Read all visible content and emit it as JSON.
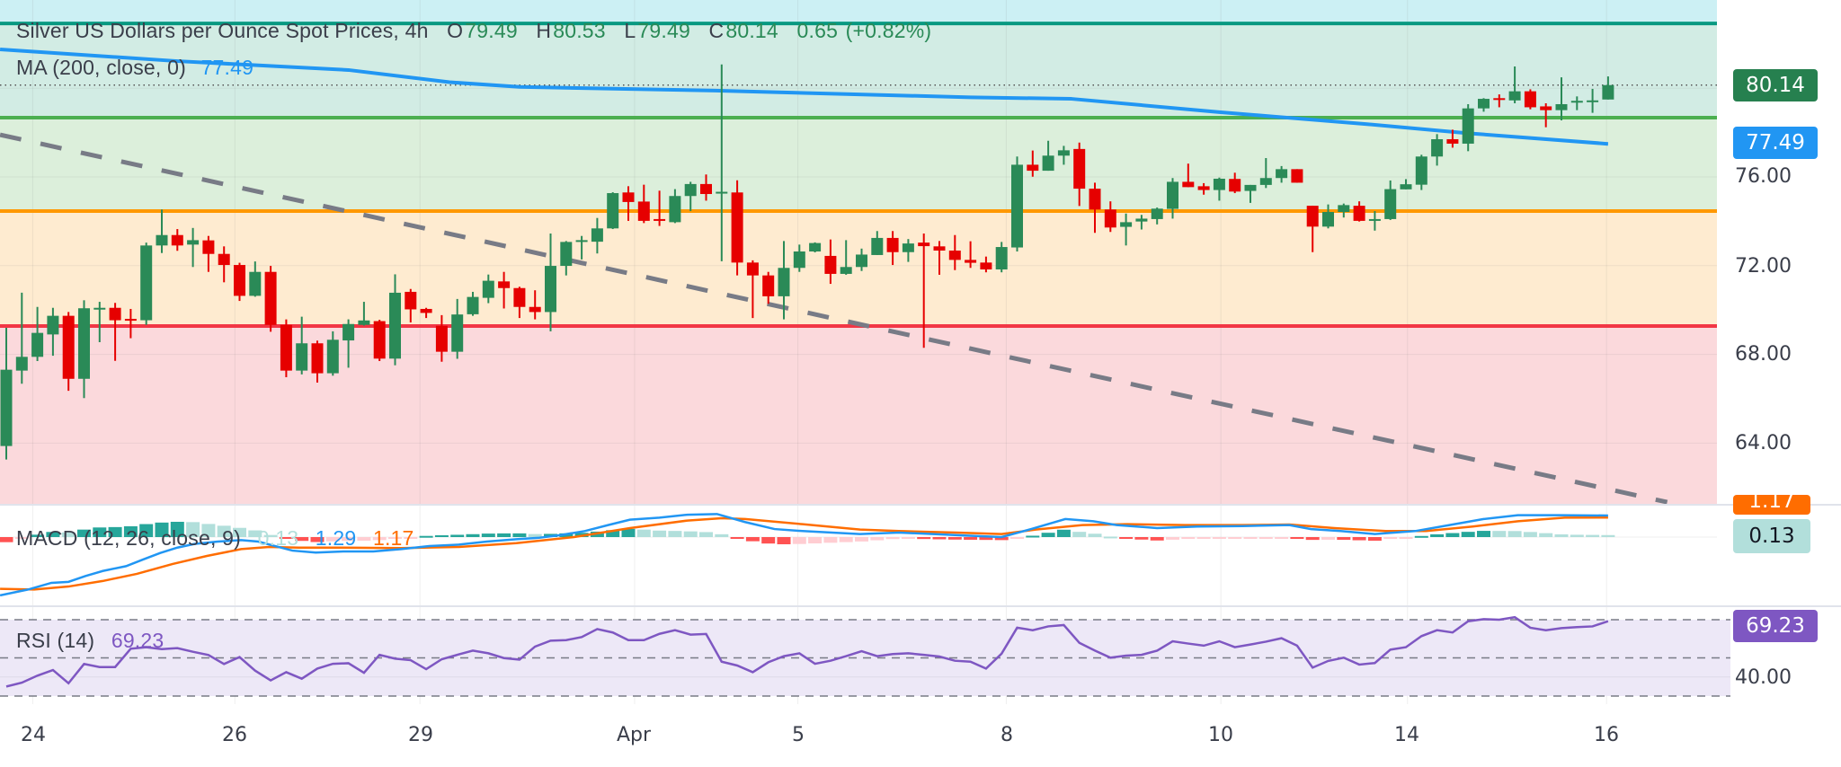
{
  "header": {
    "title": "Silver US Dollars per Ounce Spot Prices, 4h",
    "o_label": "O",
    "o": "79.49",
    "h_label": "H",
    "h": "80.53",
    "l_label": "L",
    "l": "79.49",
    "c_label": "C",
    "c": "80.14",
    "change": "0.65",
    "change_pct": "(+0.82%)"
  },
  "ma_legend": {
    "label": "MA (200, close, 0)",
    "value": "77.49"
  },
  "macd_legend": {
    "label": "MACD (12, 26, close, 9)",
    "hist": "0.13",
    "macd": "1.29",
    "signal": "1.17"
  },
  "rsi_legend": {
    "label": "RSI (14)",
    "value": "69.23"
  },
  "price_axis": {
    "ticks": [
      "76.00",
      "72.00",
      "68.00",
      "64.00"
    ],
    "last_price": "80.14",
    "ma_value": "77.49"
  },
  "macd_axis": {
    "signal_tag": "1.17",
    "hist_tag": "0.13"
  },
  "rsi_axis": {
    "value_tag": "69.23",
    "tick": "40.00"
  },
  "x_axis": {
    "labels": [
      "24",
      "26",
      "29",
      "Apr",
      "5",
      "8",
      "10",
      "14",
      "16"
    ]
  },
  "colors": {
    "up": "#2a8a57",
    "down": "#e60000",
    "ma": "#2196f3",
    "macd": "#2196f3",
    "signal": "#ff6d00",
    "rsi": "#7e57c2",
    "level_top": "#089981",
    "level_green": "#4caf50",
    "level_orange": "#ff9800",
    "level_red": "#f23645",
    "trendline": "#787b86"
  },
  "chart_data": {
    "type": "candlestick",
    "title": "Silver US Dollars per Ounce Spot Prices, 4h",
    "ylim": [
      61.5,
      84.9
    ],
    "grid": true,
    "x_ticks": [
      {
        "label": "24",
        "index": 1.7
      },
      {
        "label": "26",
        "index": 14.7
      },
      {
        "label": "29",
        "index": 26.6
      },
      {
        "label": "Apr",
        "index": 40.4
      },
      {
        "label": "5",
        "index": 50.9
      },
      {
        "label": "8",
        "index": 64.3
      },
      {
        "label": "10",
        "index": 78.1
      },
      {
        "label": "14",
        "index": 90.1
      },
      {
        "label": "16",
        "index": 102.9
      }
    ],
    "y_ticks": [
      64,
      68,
      72,
      76,
      80
    ],
    "ohlc": [
      [
        63.87,
        69.2,
        63.26,
        67.31
      ],
      [
        67.27,
        70.78,
        66.68,
        67.89
      ],
      [
        67.89,
        70.14,
        67.7,
        68.97
      ],
      [
        68.9,
        70.1,
        67.94,
        69.74
      ],
      [
        69.74,
        69.91,
        66.36,
        66.9
      ],
      [
        66.9,
        70.44,
        66.03,
        70.08
      ],
      [
        70.08,
        70.37,
        68.55,
        70.1
      ],
      [
        70.1,
        70.32,
        67.71,
        69.54
      ],
      [
        69.6,
        70.05,
        68.73,
        69.57
      ],
      [
        69.54,
        73.04,
        69.33,
        72.91
      ],
      [
        72.91,
        74.53,
        72.57,
        73.38
      ],
      [
        73.38,
        73.65,
        72.67,
        72.91
      ],
      [
        72.95,
        73.7,
        71.94,
        73.15
      ],
      [
        73.14,
        73.34,
        71.72,
        72.53
      ],
      [
        72.53,
        72.87,
        71.25,
        72.03
      ],
      [
        72.03,
        72.13,
        70.41,
        70.64
      ],
      [
        70.64,
        72.19,
        70.6,
        71.72
      ],
      [
        71.72,
        71.99,
        69.02,
        69.33
      ],
      [
        69.33,
        69.58,
        66.97,
        67.27
      ],
      [
        67.27,
        69.7,
        67.1,
        68.5
      ],
      [
        68.5,
        68.62,
        66.73,
        67.15
      ],
      [
        67.15,
        69.04,
        67.04,
        68.66
      ],
      [
        68.63,
        69.58,
        67.4,
        69.37
      ],
      [
        69.33,
        70.37,
        69.3,
        69.53
      ],
      [
        69.5,
        69.56,
        67.7,
        67.81
      ],
      [
        67.81,
        71.61,
        67.51,
        70.78
      ],
      [
        70.82,
        70.95,
        69.44,
        70.03
      ],
      [
        70.05,
        70.1,
        69.64,
        69.87
      ],
      [
        69.29,
        69.77,
        67.67,
        68.12
      ],
      [
        68.12,
        70.5,
        67.8,
        69.8
      ],
      [
        69.81,
        70.82,
        69.74,
        70.59
      ],
      [
        70.55,
        71.6,
        70.31,
        71.32
      ],
      [
        71.29,
        71.72,
        70.07,
        70.99
      ],
      [
        70.99,
        71.05,
        69.64,
        70.14
      ],
      [
        70.14,
        70.89,
        69.58,
        69.91
      ],
      [
        69.91,
        73.45,
        69.04,
        71.99
      ],
      [
        71.99,
        73.11,
        71.56,
        73.07
      ],
      [
        73.11,
        73.34,
        72.28,
        73.15
      ],
      [
        73.08,
        74.15,
        72.55,
        73.68
      ],
      [
        73.68,
        75.31,
        73.65,
        75.27
      ],
      [
        75.3,
        75.58,
        74.02,
        74.87
      ],
      [
        74.89,
        75.65,
        73.92,
        74.02
      ],
      [
        74.1,
        75.38,
        73.79,
        74.04
      ],
      [
        73.96,
        75.45,
        73.92,
        75.14
      ],
      [
        75.14,
        75.78,
        74.46,
        75.68
      ],
      [
        75.68,
        76.11,
        74.93,
        75.23
      ],
      [
        75.3,
        81.07,
        72.2,
        75.33
      ],
      [
        75.3,
        75.85,
        71.56,
        72.14
      ],
      [
        72.14,
        72.24,
        69.64,
        71.56
      ],
      [
        71.56,
        71.72,
        70.28,
        70.62
      ],
      [
        70.62,
        73.11,
        69.58,
        71.9
      ],
      [
        71.9,
        72.95,
        71.72,
        72.64
      ],
      [
        72.64,
        73.05,
        72.6,
        73.02
      ],
      [
        72.44,
        73.18,
        71.18,
        71.63
      ],
      [
        71.63,
        73.15,
        71.59,
        71.94
      ],
      [
        71.94,
        72.77,
        71.76,
        72.5
      ],
      [
        72.48,
        73.56,
        72.48,
        73.25
      ],
      [
        73.25,
        73.56,
        72.03,
        72.61
      ],
      [
        72.61,
        73.2,
        72.17,
        73.0
      ],
      [
        73.04,
        73.45,
        68.3,
        72.88
      ],
      [
        72.87,
        73.11,
        71.59,
        72.68
      ],
      [
        72.68,
        73.38,
        71.8,
        72.26
      ],
      [
        72.26,
        73.1,
        71.9,
        72.13
      ],
      [
        72.14,
        72.41,
        71.7,
        71.83
      ],
      [
        71.83,
        73.07,
        71.7,
        72.84
      ],
      [
        72.82,
        76.92,
        72.64,
        76.55
      ],
      [
        76.55,
        77.19,
        76.01,
        76.28
      ],
      [
        76.28,
        77.63,
        76.28,
        76.96
      ],
      [
        76.96,
        77.4,
        76.55,
        77.2
      ],
      [
        77.26,
        77.55,
        74.69,
        75.47
      ],
      [
        75.47,
        75.74,
        73.48,
        74.53
      ],
      [
        74.53,
        74.9,
        73.52,
        73.72
      ],
      [
        73.75,
        74.35,
        72.91,
        73.96
      ],
      [
        73.99,
        74.29,
        73.63,
        74.12
      ],
      [
        74.1,
        74.62,
        73.86,
        74.57
      ],
      [
        74.56,
        75.95,
        74.12,
        75.78
      ],
      [
        75.78,
        76.6,
        75.54,
        75.54
      ],
      [
        75.58,
        75.72,
        75.2,
        75.41
      ],
      [
        75.41,
        75.97,
        74.93,
        75.92
      ],
      [
        75.91,
        76.19,
        75.27,
        75.34
      ],
      [
        75.37,
        75.64,
        74.83,
        75.64
      ],
      [
        75.64,
        76.85,
        75.5,
        75.95
      ],
      [
        75.95,
        76.49,
        75.74,
        76.35
      ],
      [
        76.35,
        76.35,
        75.74,
        75.74
      ],
      [
        74.7,
        74.7,
        72.61,
        73.76
      ],
      [
        73.76,
        74.76,
        73.68,
        74.42
      ],
      [
        74.42,
        74.8,
        74.17,
        74.73
      ],
      [
        74.7,
        74.9,
        73.99,
        74.02
      ],
      [
        74.08,
        74.46,
        73.58,
        74.1
      ],
      [
        74.1,
        75.84,
        74.06,
        75.45
      ],
      [
        75.44,
        75.9,
        75.44,
        75.67
      ],
      [
        75.65,
        77.0,
        75.41,
        76.92
      ],
      [
        76.92,
        77.93,
        76.51,
        77.7
      ],
      [
        77.7,
        78.13,
        77.32,
        77.5
      ],
      [
        77.5,
        79.28,
        77.16,
        79.09
      ],
      [
        79.09,
        79.55,
        78.94,
        79.52
      ],
      [
        79.55,
        79.72,
        79.14,
        79.48
      ],
      [
        79.45,
        80.98,
        79.32,
        79.86
      ],
      [
        79.86,
        79.95,
        79.05,
        79.14
      ],
      [
        79.18,
        79.32,
        78.24,
        79.01
      ],
      [
        79.01,
        80.49,
        78.55,
        79.28
      ],
      [
        79.41,
        79.63,
        79.01,
        79.43
      ],
      [
        79.43,
        79.97,
        78.89,
        79.45
      ],
      [
        79.49,
        80.53,
        79.49,
        80.14
      ]
    ],
    "ma200": [
      [
        -0.4,
        81.75
      ],
      [
        11,
        81.22
      ],
      [
        22,
        80.82
      ],
      [
        28.5,
        80.27
      ],
      [
        33,
        80.06
      ],
      [
        45.6,
        79.89
      ],
      [
        62,
        79.59
      ],
      [
        68.5,
        79.52
      ],
      [
        78,
        78.92
      ],
      [
        87.5,
        78.38
      ],
      [
        94,
        77.97
      ],
      [
        103,
        77.49
      ]
    ],
    "levels": [
      {
        "price": 82.92,
        "color_key": "level_top"
      },
      {
        "price": 78.67,
        "color_key": "level_green"
      },
      {
        "price": 74.46,
        "color_key": "level_orange"
      },
      {
        "price": 69.28,
        "color_key": "level_red"
      }
    ],
    "zones": [
      {
        "from": 82.92,
        "to": 90,
        "color": "#ccf0f4"
      },
      {
        "from": 78.67,
        "to": 82.92,
        "color": "#d2ece4"
      },
      {
        "from": 74.46,
        "to": 78.67,
        "color": "#dcefdb"
      },
      {
        "from": 69.28,
        "to": 74.46,
        "color": "#feebd0"
      },
      {
        "from": 50,
        "to": 69.28,
        "color": "#fbd9dc"
      }
    ],
    "trendline": [
      [
        -0.4,
        77.9
      ],
      [
        106.8,
        61.34
      ]
    ],
    "last_price": 80.14,
    "macd": {
      "ylim": [
        -4.1,
        2.1
      ],
      "macd": [
        [
          -0.4,
          -3.49
        ],
        [
          1.4,
          -3.14
        ],
        [
          2.9,
          -2.74
        ],
        [
          4,
          -2.68
        ],
        [
          5.1,
          -2.33
        ],
        [
          6.2,
          -2.03
        ],
        [
          7.7,
          -1.74
        ],
        [
          8.8,
          -1.34
        ],
        [
          9.9,
          -0.95
        ],
        [
          11,
          -0.63
        ],
        [
          12.1,
          -0.41
        ],
        [
          13.6,
          -0.27
        ],
        [
          15.1,
          -0.18
        ],
        [
          16.2,
          -0.27
        ],
        [
          17.3,
          -0.54
        ],
        [
          18.4,
          -0.81
        ],
        [
          19.9,
          -0.93
        ],
        [
          21.7,
          -0.86
        ],
        [
          23.6,
          -0.86
        ],
        [
          25.4,
          -0.72
        ],
        [
          27.2,
          -0.54
        ],
        [
          29.1,
          -0.45
        ],
        [
          30.9,
          -0.27
        ],
        [
          32.8,
          -0.13
        ],
        [
          34.2,
          -0.05
        ],
        [
          35.7,
          0.13
        ],
        [
          37.2,
          0.36
        ],
        [
          38.7,
          0.72
        ],
        [
          40.1,
          1.04
        ],
        [
          42,
          1.16
        ],
        [
          43.8,
          1.34
        ],
        [
          45.7,
          1.38
        ],
        [
          47.5,
          0.9
        ],
        [
          49.4,
          0.48
        ],
        [
          51.2,
          0.36
        ],
        [
          53.1,
          0.27
        ],
        [
          54.9,
          0.18
        ],
        [
          57.4,
          0.27
        ],
        [
          59.6,
          0.18
        ],
        [
          61.8,
          0.09
        ],
        [
          64,
          0
        ],
        [
          65.9,
          0.48
        ],
        [
          68.1,
          1.08
        ],
        [
          69.9,
          0.95
        ],
        [
          71.4,
          0.72
        ],
        [
          74,
          0.54
        ],
        [
          76.6,
          0.63
        ],
        [
          79.5,
          0.66
        ],
        [
          82.5,
          0.72
        ],
        [
          83.9,
          0.48
        ],
        [
          85.8,
          0.36
        ],
        [
          88,
          0.18
        ],
        [
          90.6,
          0.36
        ],
        [
          92.8,
          0.72
        ],
        [
          95,
          1.08
        ],
        [
          97.2,
          1.31
        ],
        [
          99.8,
          1.31
        ],
        [
          103,
          1.29
        ]
      ],
      "signal": [
        [
          -0.4,
          -3.1
        ],
        [
          1.8,
          -3.14
        ],
        [
          4,
          -2.96
        ],
        [
          6.2,
          -2.63
        ],
        [
          8.4,
          -2.2
        ],
        [
          10.7,
          -1.61
        ],
        [
          12.9,
          -1.13
        ],
        [
          15.1,
          -0.72
        ],
        [
          16.9,
          -0.59
        ],
        [
          18.8,
          -0.63
        ],
        [
          21.7,
          -0.63
        ],
        [
          25.4,
          -0.66
        ],
        [
          29.1,
          -0.59
        ],
        [
          32.8,
          -0.36
        ],
        [
          36.5,
          0
        ],
        [
          40.1,
          0.54
        ],
        [
          43.8,
          0.99
        ],
        [
          46,
          1.13
        ],
        [
          47.5,
          1.08
        ],
        [
          51.2,
          0.77
        ],
        [
          54.9,
          0.45
        ],
        [
          57.4,
          0.36
        ],
        [
          61.1,
          0.27
        ],
        [
          64,
          0.18
        ],
        [
          66.2,
          0.45
        ],
        [
          69.2,
          0.72
        ],
        [
          72.1,
          0.77
        ],
        [
          75.8,
          0.72
        ],
        [
          79.5,
          0.72
        ],
        [
          82.5,
          0.75
        ],
        [
          85.4,
          0.54
        ],
        [
          88.7,
          0.36
        ],
        [
          91.3,
          0.36
        ],
        [
          94.3,
          0.63
        ],
        [
          97.2,
          0.95
        ],
        [
          100.2,
          1.16
        ],
        [
          103,
          1.17
        ]
      ]
    },
    "rsi": {
      "levels": [
        70,
        50,
        30
      ],
      "values": [
        35,
        37,
        40.7,
        43.6,
        36.7,
        46.8,
        45.2,
        45.2,
        54.8,
        55.6,
        54.6,
        55.1,
        53.2,
        51.5,
        46.8,
        50.4,
        43.3,
        38.2,
        42.5,
        39.1,
        44.4,
        46.9,
        47.2,
        42.2,
        51.6,
        49.6,
        48.8,
        44.1,
        49.3,
        51.6,
        53.8,
        52.4,
        49.9,
        49.1,
        55.9,
        59,
        59.3,
        60.9,
        65.1,
        63.3,
        59.3,
        59.3,
        62.6,
        64.5,
        62.2,
        62.5,
        48,
        46,
        42.5,
        47.7,
        50.9,
        52.4,
        46.9,
        48.5,
        50.9,
        53.5,
        50.9,
        52,
        52.4,
        51.6,
        50.7,
        48.5,
        48,
        44.4,
        52.2,
        65.8,
        64.5,
        66.5,
        67.2,
        57.9,
        53.8,
        50.1,
        51.2,
        51.6,
        53.8,
        58.7,
        57.5,
        56.4,
        58.7,
        55.6,
        57,
        58.5,
        60.3,
        56.4,
        44.9,
        48.4,
        50.1,
        46.5,
        47.3,
        54.3,
        55.6,
        61.4,
        64.5,
        63.3,
        69.2,
        70.3,
        70,
        71.3,
        65.8,
        64.5,
        65.6,
        66.1,
        66.5,
        69.23
      ]
    }
  }
}
